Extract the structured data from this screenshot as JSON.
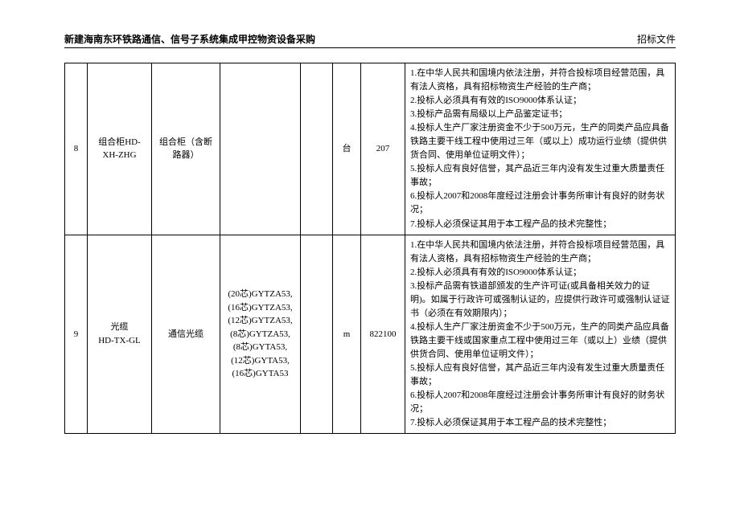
{
  "header": {
    "left": "新建海南东环铁路通信、信号子系统集成甲控物资设备采购",
    "right": "招标文件"
  },
  "rows": [
    {
      "idx": "8",
      "code": "组合柜HD-XH-ZHG",
      "name": "组合柜（含断路器）",
      "spec": "",
      "blank": "",
      "unit": "台",
      "qty": "207",
      "req": "1.在中华人民共和国境内依法注册，并符合投标项目经营范围，具有法人资格，具有招标物资生产经验的生产商；\n2.投标人必须具有有效的ISO9000体系认证；\n3.投标产品需有局级以上产品鉴定证书；\n4.投标人生产厂家注册资金不少于500万元，生产的同类产品应具备铁路主要干线工程中使用过三年（或以上）成功运行业绩（提供供货合同、使用单位证明文件）；\n5.投标人应有良好信誉，其产品近三年内没有发生过重大质量责任事故；\n6.投标人2007和2008年度经过注册会计事务所审计有良好的财务状况；\n7.投标人必须保证其用于本工程产品的技术完整性；"
    },
    {
      "idx": "9",
      "code": "光缆\nHD-TX-GL",
      "name": "通信光缆",
      "spec": "(20芯)GYTZA53,\n(16芯)GYTZA53,\n(12芯)GYTZA53,\n(8芯)GYTZA53,\n(8芯)GYTA53,\n(12芯)GYTA53,\n(16芯)GYTA53",
      "blank": "",
      "unit": "m",
      "qty": "822100",
      "req": "1.在中华人民共和国境内依法注册，并符合投标项目经营范围，具有法人资格，具有招标物资生产经验的生产商；\n2.投标人必须具有有效的ISO9000体系认证；\n3.投标产品需有铁道部颁发的生产许可证(或具备相关效力的证明)。如属于行政许可或强制认证的，应提供行政许可或强制认证证书（必须在有效期限内）；\n4.投标人生产厂家注册资金不少于500万元，生产的同类产品应具备铁路主要干线或国家重点工程中使用过三年（或以上）业绩（提供供货合同、使用单位证明文件）；\n5.投标人应有良好信誉，其产品近三年内没有发生过重大质量责任事故；\n6.投标人2007和2008年度经过注册会计事务所审计有良好的财务状况；\n7.投标人必须保证其用于本工程产品的技术完整性；"
    }
  ]
}
